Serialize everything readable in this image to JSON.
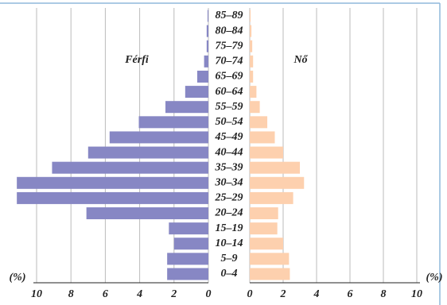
{
  "chart_data": {
    "type": "pyramid",
    "categories": [
      "85–89",
      "80–84",
      "75–79",
      "70–74",
      "65–69",
      "60–64",
      "55–59",
      "50–54",
      "45–49",
      "40–44",
      "35–39",
      "30–34",
      "25–29",
      "20–24",
      "15–19",
      "10–14",
      "5–9",
      "0–4"
    ],
    "series": [
      {
        "name": "Férfi",
        "color": "#8787c4",
        "values": [
          0.05,
          0.1,
          0.1,
          0.25,
          0.65,
          1.35,
          2.5,
          4.05,
          5.75,
          7.0,
          9.1,
          11.15,
          11.15,
          7.1,
          2.3,
          2.0,
          2.4,
          2.4
        ]
      },
      {
        "name": "Nő",
        "color": "#fdd0ae",
        "values": [
          0.05,
          0.1,
          0.15,
          0.2,
          0.2,
          0.4,
          0.6,
          1.05,
          1.5,
          2.0,
          3.0,
          3.25,
          2.6,
          1.7,
          1.65,
          2.0,
          2.35,
          2.4
        ]
      }
    ],
    "xlabel": "(%)",
    "xlim": [
      0,
      10
    ],
    "xticks": [
      0,
      2,
      4,
      6,
      8,
      10
    ],
    "grid": true
  }
}
